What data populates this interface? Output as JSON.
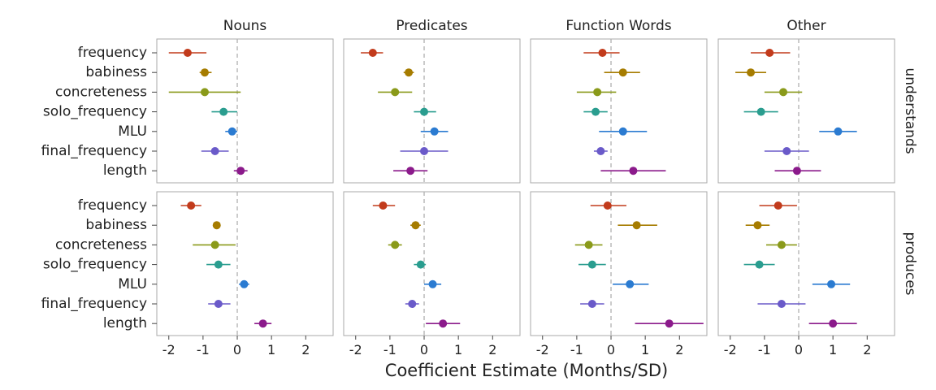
{
  "chart_data": {
    "type": "scatter",
    "subtype": "point-range-facet",
    "xlabel": "Coefficient Estimate (Months/SD)",
    "xlim": [
      -2.35,
      2.8
    ],
    "xticks": [
      -2,
      -1,
      0,
      1,
      2
    ],
    "reference_line_x": 0,
    "grid": false,
    "columns": [
      "Nouns",
      "Predicates",
      "Function Words",
      "Other"
    ],
    "rows": [
      "understands",
      "produces"
    ],
    "terms": [
      "frequency",
      "babiness",
      "concreteness",
      "solo_frequency",
      "MLU",
      "final_frequency",
      "length"
    ],
    "term_colors": [
      "#c23b1c",
      "#a67c00",
      "#8a9a1a",
      "#2a9d8f",
      "#2b7bd1",
      "#6a5ac9",
      "#8b1a8b"
    ],
    "series": [
      {
        "row": "understands",
        "column": "Nouns",
        "points": [
          {
            "term": "frequency",
            "estimate": -1.45,
            "lo": -2.0,
            "hi": -0.9
          },
          {
            "term": "babiness",
            "estimate": -0.95,
            "lo": -1.1,
            "hi": -0.75
          },
          {
            "term": "concreteness",
            "estimate": -0.95,
            "lo": -2.0,
            "hi": 0.1
          },
          {
            "term": "solo_frequency",
            "estimate": -0.4,
            "lo": -0.75,
            "hi": 0.0
          },
          {
            "term": "MLU",
            "estimate": -0.15,
            "lo": -0.35,
            "hi": 0.0
          },
          {
            "term": "final_frequency",
            "estimate": -0.65,
            "lo": -1.05,
            "hi": -0.25
          },
          {
            "term": "length",
            "estimate": 0.1,
            "lo": -0.1,
            "hi": 0.3
          }
        ]
      },
      {
        "row": "understands",
        "column": "Predicates",
        "points": [
          {
            "term": "frequency",
            "estimate": -1.5,
            "lo": -1.85,
            "hi": -1.2
          },
          {
            "term": "babiness",
            "estimate": -0.45,
            "lo": -0.6,
            "hi": -0.3
          },
          {
            "term": "concreteness",
            "estimate": -0.85,
            "lo": -1.35,
            "hi": -0.35
          },
          {
            "term": "solo_frequency",
            "estimate": 0.0,
            "lo": -0.3,
            "hi": 0.35
          },
          {
            "term": "MLU",
            "estimate": 0.3,
            "lo": -0.1,
            "hi": 0.7
          },
          {
            "term": "final_frequency",
            "estimate": 0.0,
            "lo": -0.7,
            "hi": 0.7
          },
          {
            "term": "length",
            "estimate": -0.4,
            "lo": -0.9,
            "hi": 0.1
          }
        ]
      },
      {
        "row": "understands",
        "column": "Function Words",
        "points": [
          {
            "term": "frequency",
            "estimate": -0.25,
            "lo": -0.8,
            "hi": 0.25
          },
          {
            "term": "babiness",
            "estimate": 0.35,
            "lo": -0.2,
            "hi": 0.85
          },
          {
            "term": "concreteness",
            "estimate": -0.4,
            "lo": -1.0,
            "hi": 0.15
          },
          {
            "term": "solo_frequency",
            "estimate": -0.45,
            "lo": -0.8,
            "hi": -0.1
          },
          {
            "term": "MLU",
            "estimate": 0.35,
            "lo": -0.35,
            "hi": 1.05
          },
          {
            "term": "final_frequency",
            "estimate": -0.3,
            "lo": -0.5,
            "hi": -0.1
          },
          {
            "term": "length",
            "estimate": 0.65,
            "lo": -0.3,
            "hi": 1.6
          }
        ]
      },
      {
        "row": "understands",
        "column": "Other",
        "points": [
          {
            "term": "frequency",
            "estimate": -0.85,
            "lo": -1.4,
            "hi": -0.25
          },
          {
            "term": "babiness",
            "estimate": -1.4,
            "lo": -1.85,
            "hi": -0.95
          },
          {
            "term": "concreteness",
            "estimate": -0.45,
            "lo": -1.0,
            "hi": 0.1
          },
          {
            "term": "solo_frequency",
            "estimate": -1.1,
            "lo": -1.6,
            "hi": -0.6
          },
          {
            "term": "MLU",
            "estimate": 1.15,
            "lo": 0.6,
            "hi": 1.7
          },
          {
            "term": "final_frequency",
            "estimate": -0.35,
            "lo": -1.0,
            "hi": 0.3
          },
          {
            "term": "length",
            "estimate": -0.05,
            "lo": -0.7,
            "hi": 0.65
          }
        ]
      },
      {
        "row": "produces",
        "column": "Nouns",
        "points": [
          {
            "term": "frequency",
            "estimate": -1.35,
            "lo": -1.65,
            "hi": -1.05
          },
          {
            "term": "babiness",
            "estimate": -0.6,
            "lo": -0.7,
            "hi": -0.5
          },
          {
            "term": "concreteness",
            "estimate": -0.65,
            "lo": -1.3,
            "hi": -0.05
          },
          {
            "term": "solo_frequency",
            "estimate": -0.55,
            "lo": -0.9,
            "hi": -0.2
          },
          {
            "term": "MLU",
            "estimate": 0.2,
            "lo": 0.05,
            "hi": 0.35
          },
          {
            "term": "final_frequency",
            "estimate": -0.55,
            "lo": -0.85,
            "hi": -0.2
          },
          {
            "term": "length",
            "estimate": 0.75,
            "lo": 0.5,
            "hi": 1.0
          }
        ]
      },
      {
        "row": "produces",
        "column": "Predicates",
        "points": [
          {
            "term": "frequency",
            "estimate": -1.2,
            "lo": -1.5,
            "hi": -0.85
          },
          {
            "term": "babiness",
            "estimate": -0.25,
            "lo": -0.4,
            "hi": -0.1
          },
          {
            "term": "concreteness",
            "estimate": -0.85,
            "lo": -1.05,
            "hi": -0.65
          },
          {
            "term": "solo_frequency",
            "estimate": -0.1,
            "lo": -0.3,
            "hi": 0.05
          },
          {
            "term": "MLU",
            "estimate": 0.25,
            "lo": 0.0,
            "hi": 0.5
          },
          {
            "term": "final_frequency",
            "estimate": -0.35,
            "lo": -0.55,
            "hi": -0.15
          },
          {
            "term": "length",
            "estimate": 0.55,
            "lo": 0.05,
            "hi": 1.05
          }
        ]
      },
      {
        "row": "produces",
        "column": "Function Words",
        "points": [
          {
            "term": "frequency",
            "estimate": -0.1,
            "lo": -0.6,
            "hi": 0.45
          },
          {
            "term": "babiness",
            "estimate": 0.75,
            "lo": 0.2,
            "hi": 1.35
          },
          {
            "term": "concreteness",
            "estimate": -0.65,
            "lo": -1.05,
            "hi": -0.25
          },
          {
            "term": "solo_frequency",
            "estimate": -0.55,
            "lo": -0.95,
            "hi": -0.15
          },
          {
            "term": "MLU",
            "estimate": 0.55,
            "lo": 0.05,
            "hi": 1.1
          },
          {
            "term": "final_frequency",
            "estimate": -0.55,
            "lo": -0.9,
            "hi": -0.2
          },
          {
            "term": "length",
            "estimate": 1.7,
            "lo": 0.7,
            "hi": 2.7
          }
        ]
      },
      {
        "row": "produces",
        "column": "Other",
        "points": [
          {
            "term": "frequency",
            "estimate": -0.6,
            "lo": -1.15,
            "hi": -0.05
          },
          {
            "term": "babiness",
            "estimate": -1.2,
            "lo": -1.55,
            "hi": -0.85
          },
          {
            "term": "concreteness",
            "estimate": -0.5,
            "lo": -0.95,
            "hi": -0.05
          },
          {
            "term": "solo_frequency",
            "estimate": -1.15,
            "lo": -1.6,
            "hi": -0.7
          },
          {
            "term": "MLU",
            "estimate": 0.95,
            "lo": 0.4,
            "hi": 1.5
          },
          {
            "term": "final_frequency",
            "estimate": -0.5,
            "lo": -1.2,
            "hi": 0.2
          },
          {
            "term": "length",
            "estimate": 1.0,
            "lo": 0.3,
            "hi": 1.7
          }
        ]
      }
    ]
  }
}
